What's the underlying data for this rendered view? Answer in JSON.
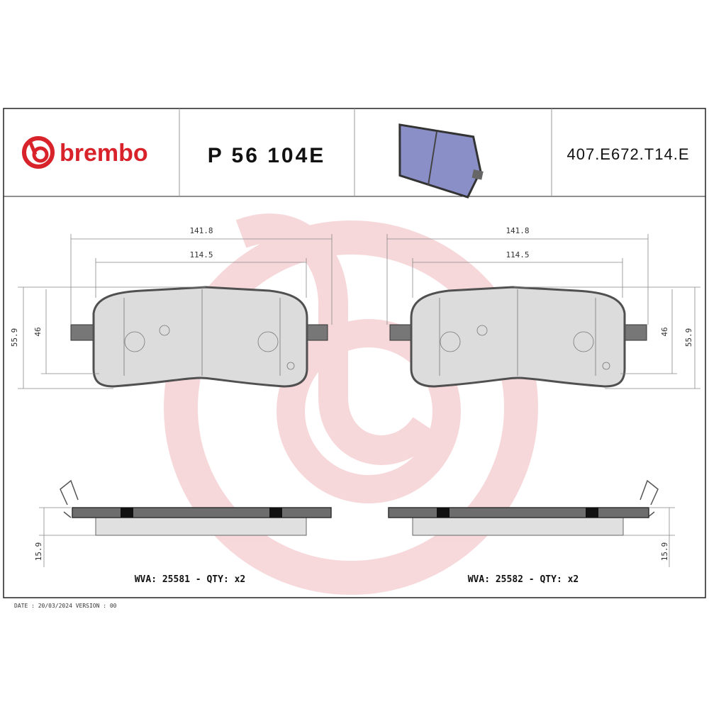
{
  "header": {
    "brand": "brembo",
    "part_number": "P 56 104E",
    "reference": "407.E672.T14.E"
  },
  "left_pad": {
    "length": "141.8",
    "inner_length": "114.5",
    "height": "55.9",
    "inner_height": "46",
    "thickness": "15.9",
    "label": "WVA: 25581 - QTY: x2"
  },
  "right_pad": {
    "length": "141.8",
    "inner_length": "114.5",
    "height": "55.9",
    "inner_height": "46",
    "thickness": "15.9",
    "label": "WVA: 25582 - QTY: x2"
  },
  "footer": {
    "date_version": "DATE : 20/03/2024 VERSION : 00"
  }
}
